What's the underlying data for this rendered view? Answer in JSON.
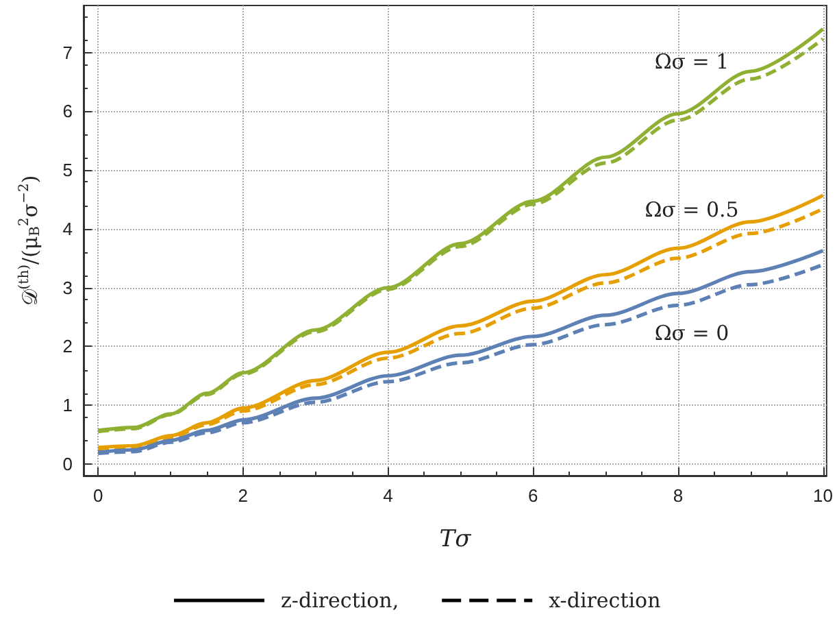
{
  "chart_data": {
    "type": "line",
    "xlabel": "Tσ",
    "ylabel": "𝒟$^{(th)}$/(μ$_{B}$$^{2}$σ$^{−2}$)",
    "x": [
      0,
      0.5,
      1,
      1.5,
      2,
      3,
      4,
      5,
      6,
      7,
      8,
      9,
      10
    ],
    "series": [
      {
        "color": "#8fb032",
        "line_style": "solid",
        "values": [
          0.57,
          0.62,
          0.85,
          1.2,
          1.55,
          2.28,
          3.0,
          3.75,
          4.47,
          5.22,
          5.96,
          6.68,
          7.4
        ]
      },
      {
        "color": "#8fb032",
        "line_style": "dashed",
        "values": [
          0.55,
          0.6,
          0.84,
          1.18,
          1.53,
          2.25,
          2.97,
          3.7,
          4.42,
          5.12,
          5.85,
          6.55,
          7.23
        ]
      },
      {
        "color": "#e69f00",
        "line_style": "solid",
        "values": [
          0.28,
          0.31,
          0.48,
          0.7,
          0.95,
          1.42,
          1.9,
          2.35,
          2.77,
          3.22,
          3.67,
          4.12,
          4.57
        ]
      },
      {
        "color": "#e69f00",
        "line_style": "dashed",
        "values": [
          0.26,
          0.29,
          0.45,
          0.67,
          0.9,
          1.35,
          1.8,
          2.22,
          2.65,
          3.08,
          3.5,
          3.92,
          4.34
        ]
      },
      {
        "color": "#5e81b5",
        "line_style": "solid",
        "values": [
          0.2,
          0.24,
          0.4,
          0.57,
          0.75,
          1.12,
          1.5,
          1.85,
          2.17,
          2.53,
          2.9,
          3.27,
          3.63
        ]
      },
      {
        "color": "#5e81b5",
        "line_style": "dashed",
        "values": [
          0.18,
          0.21,
          0.37,
          0.53,
          0.7,
          1.05,
          1.4,
          1.72,
          2.03,
          2.37,
          2.7,
          3.05,
          3.39
        ]
      }
    ],
    "xlim": [
      -0.2,
      10.05
    ],
    "ylim": [
      -0.2,
      7.8
    ],
    "xticks": [
      0,
      2,
      4,
      6,
      8,
      10
    ],
    "yticks": [
      0,
      1,
      2,
      3,
      4,
      5,
      6,
      7
    ],
    "grid": true,
    "marker": "none",
    "annotations": [
      "Ωσ = 1",
      "Ωσ = 0.5",
      "Ωσ = 0",
      "z-direction,",
      "x-direction"
    ]
  }
}
